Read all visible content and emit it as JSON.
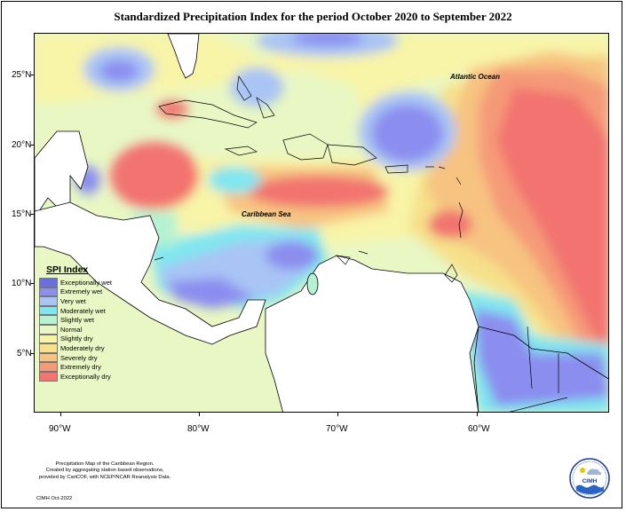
{
  "title": "Standardized Precipitation Index for the period October 2020 to September 2022",
  "map": {
    "y_axis_labels": [
      "25°N",
      "20°N",
      "15°N",
      "10°N",
      "5°N"
    ],
    "x_axis_labels": [
      "90°W",
      "80°W",
      "70°W",
      "60°W"
    ],
    "place_labels": {
      "atlantic": "Atlantic Ocean",
      "caribbean": "Caribbean Sea"
    }
  },
  "legend": {
    "title": "SPI Index",
    "items": [
      {
        "label": "Exceptionally wet",
        "color": "#6b6ee0"
      },
      {
        "label": "Extremely wet",
        "color": "#8b8def"
      },
      {
        "label": "Very wet",
        "color": "#a9c4f5"
      },
      {
        "label": "Moderately wet",
        "color": "#7fe6f0"
      },
      {
        "label": "Slightly wet",
        "color": "#b5f2d2"
      },
      {
        "label": "Normal",
        "color": "#e8f7c4"
      },
      {
        "label": "Slightly dry",
        "color": "#f8f4a8"
      },
      {
        "label": "Moderately dry",
        "color": "#f6e08a"
      },
      {
        "label": "Severely dry",
        "color": "#f7c381"
      },
      {
        "label": "Extremely dry",
        "color": "#f59a78"
      },
      {
        "label": "Exceptionally dry",
        "color": "#f2736f"
      }
    ]
  },
  "footer": {
    "line1": "Precipitation Map of the Caribbean Region.",
    "line2": "Created by aggregating station based observations,",
    "line3": "provided by CariCOF, with NCEP/NCAR Reanalysis Data.",
    "credit": "CIMH Oct-2022"
  },
  "logo": {
    "text": "CIMH"
  }
}
